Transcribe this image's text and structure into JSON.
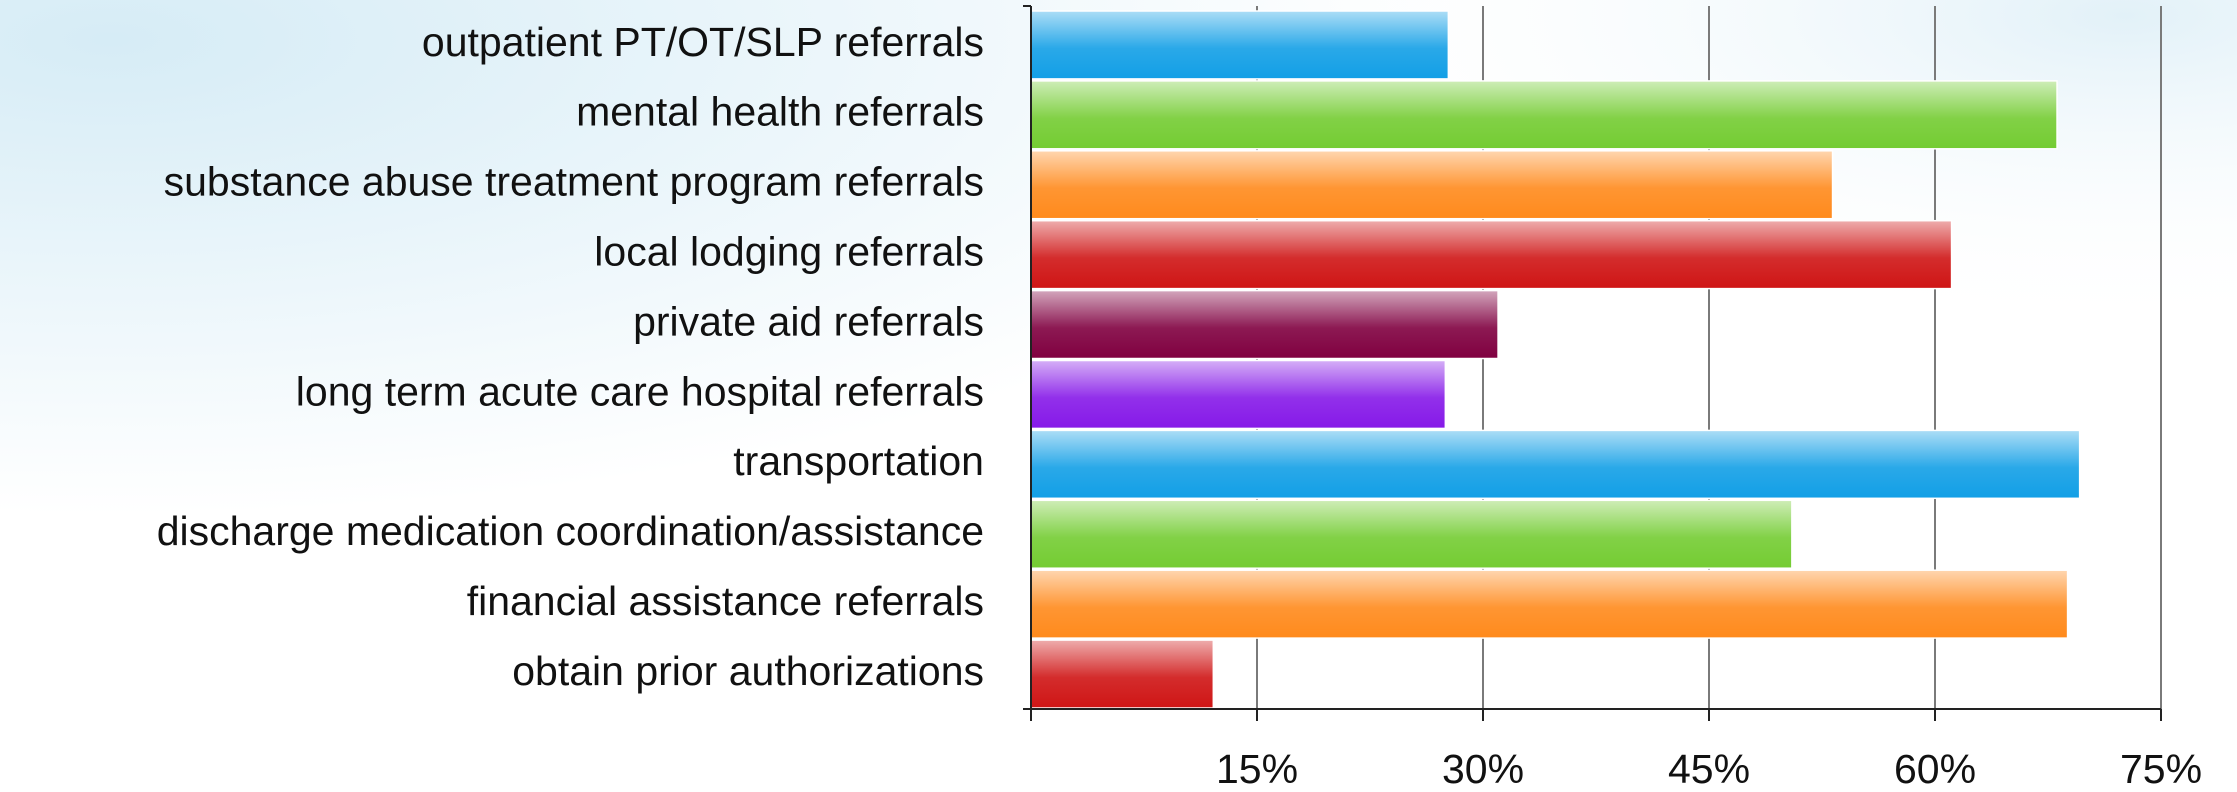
{
  "chart_data": {
    "type": "bar",
    "orientation": "horizontal",
    "categories": [
      "outpatient PT/OT/SLP referrals",
      "mental health referrals",
      "substance abuse treatment program referrals",
      "local lodging referrals",
      "private aid referrals",
      "long term acute care hospital referrals",
      "transportation",
      "discharge medication coordination/assistance",
      "financial assistance referrals",
      "obtain prior authorizations"
    ],
    "values": [
      27.7,
      68.1,
      53.2,
      61.1,
      31.0,
      27.5,
      69.6,
      50.5,
      68.8,
      12.1
    ],
    "colors": [
      "#129fe6",
      "#74cc32",
      "#ff8a1c",
      "#cf1515",
      "#800040",
      "#8619e8",
      "#129fe6",
      "#74cc32",
      "#ff8a1c",
      "#cf1515"
    ],
    "xlim": [
      0,
      75
    ],
    "xticks": [
      {
        "value": 15,
        "label": "15%"
      },
      {
        "value": 30,
        "label": "30%"
      },
      {
        "value": 45,
        "label": "45%"
      },
      {
        "value": 60,
        "label": "60%"
      },
      {
        "value": 75,
        "label": "75%"
      }
    ],
    "grid": true
  }
}
